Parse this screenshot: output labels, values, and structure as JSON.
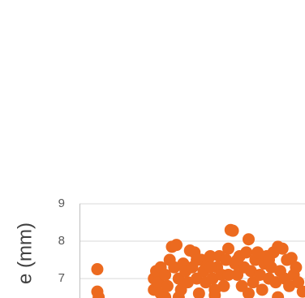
{
  "chart_data": {
    "type": "scatter",
    "y_label": "e (mm)",
    "color": "#ec6a1f",
    "ylim": [
      6.48,
      9
    ],
    "yticks": [
      7,
      8,
      9
    ],
    "xlim": [
      0,
      100
    ],
    "grid": true,
    "x": [
      7.9,
      7.9,
      8.5,
      33,
      33,
      34,
      35,
      36,
      36,
      38,
      39,
      40,
      41,
      42,
      43,
      44,
      45,
      46,
      47,
      48,
      49,
      50,
      51,
      52,
      53,
      54,
      55,
      56,
      57,
      58,
      59,
      60,
      61,
      62,
      63,
      64,
      65,
      66,
      67,
      68,
      69,
      70,
      71,
      72,
      73,
      74,
      75,
      76,
      77,
      78,
      79,
      80,
      81,
      82,
      83,
      84,
      85,
      86,
      87,
      88,
      89,
      90,
      91,
      92,
      93,
      94,
      95,
      96,
      97,
      99,
      44,
      60,
      75,
      88,
      38,
      52,
      70,
      84,
      58,
      66
    ],
    "values": [
      7.25,
      6.65,
      6.5,
      7.0,
      6.7,
      7.2,
      6.9,
      7.3,
      6.6,
      7.1,
      6.8,
      7.5,
      7.85,
      7.3,
      7.9,
      7.0,
      6.7,
      7.4,
      7.2,
      6.9,
      7.75,
      7.3,
      7.7,
      7.0,
      6.6,
      7.5,
      7.2,
      6.9,
      7.4,
      7.6,
      7.0,
      6.7,
      7.3,
      7.6,
      7.1,
      6.8,
      7.5,
      7.8,
      8.3,
      8.28,
      7.4,
      7.1,
      7.6,
      6.8,
      7.3,
      7.7,
      8.05,
      7.2,
      6.9,
      7.5,
      7.7,
      7.1,
      6.7,
      7.4,
      7.6,
      7.0,
      7.3,
      7.7,
      6.9,
      7.85,
      7.2,
      7.8,
      7.0,
      7.5,
      6.8,
      7.55,
      7.1,
      7.3,
      6.9,
      6.65,
      6.5,
      6.55,
      6.6,
      6.5,
      6.5,
      7.5,
      7.5,
      7.5,
      7.3,
      7.1
    ]
  }
}
